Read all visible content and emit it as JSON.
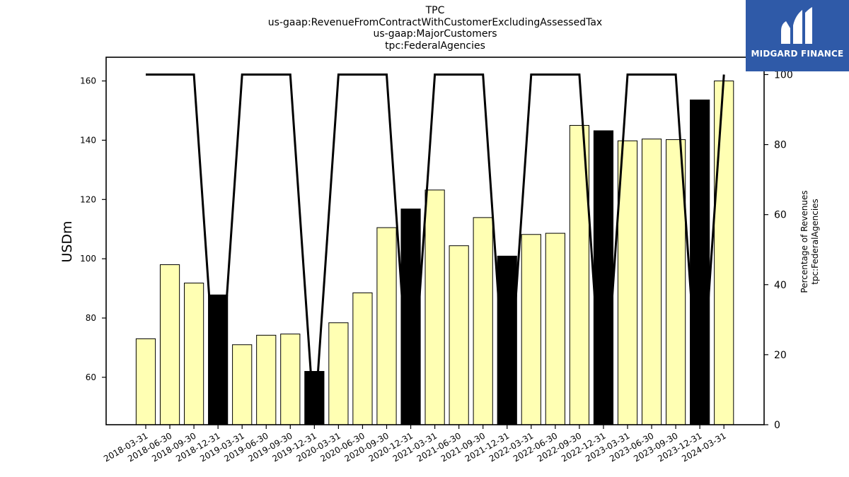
{
  "title_lines": [
    "TPC",
    "us-gaap:RevenueFromContractWithCustomerExcludingAssessedTax",
    "us-gaap:MajorCustomers",
    "tpc:FederalAgencies"
  ],
  "logo": {
    "text": "MIDGARD FINANCE"
  },
  "colors": {
    "bar_default": "#ffffb3",
    "bar_highlight": "#000000",
    "line": "#000000",
    "logo_bg": "#2f5aa8"
  },
  "chart_data": {
    "type": "bar",
    "categories": [
      "2018-03-31",
      "2018-06-30",
      "2018-09-30",
      "2018-12-31",
      "2019-03-31",
      "2019-06-30",
      "2019-09-30",
      "2019-12-31",
      "2020-03-31",
      "2020-06-30",
      "2020-09-30",
      "2020-12-31",
      "2021-03-31",
      "2021-06-30",
      "2021-09-30",
      "2021-12-31",
      "2022-03-31",
      "2022-06-30",
      "2022-09-30",
      "2022-12-31",
      "2023-03-31",
      "2023-06-30",
      "2023-09-30",
      "2023-12-31",
      "2024-03-31"
    ],
    "values": [
      73.0,
      98.0,
      91.8,
      87.8,
      71.0,
      74.2,
      74.6,
      62.0,
      78.4,
      88.5,
      110.5,
      116.8,
      123.2,
      104.4,
      113.9,
      100.9,
      108.2,
      108.6,
      145.0,
      143.2,
      139.8,
      140.4,
      140.2,
      153.6,
      160.0
    ],
    "highlight": [
      false,
      false,
      false,
      true,
      false,
      false,
      false,
      true,
      false,
      false,
      false,
      true,
      false,
      false,
      false,
      true,
      false,
      false,
      false,
      true,
      false,
      false,
      false,
      true,
      false
    ],
    "ylabel": "USDm",
    "ylim": [
      44,
      168
    ],
    "yticks": [
      60,
      80,
      100,
      120,
      140,
      160
    ],
    "secondary_axis": {
      "label_lines": [
        "Percentage of Revenues",
        "tpc:FederalAgencies"
      ],
      "ylim": [
        0,
        100
      ],
      "yticks": [
        0,
        20,
        40,
        60,
        80,
        100
      ],
      "line_values": [
        100,
        100,
        100,
        0,
        100,
        100,
        100,
        0,
        100,
        100,
        100,
        0,
        100,
        100,
        100,
        0,
        100,
        100,
        100,
        0,
        100,
        100,
        100,
        0,
        100
      ]
    },
    "grid": false,
    "legend": "none"
  }
}
